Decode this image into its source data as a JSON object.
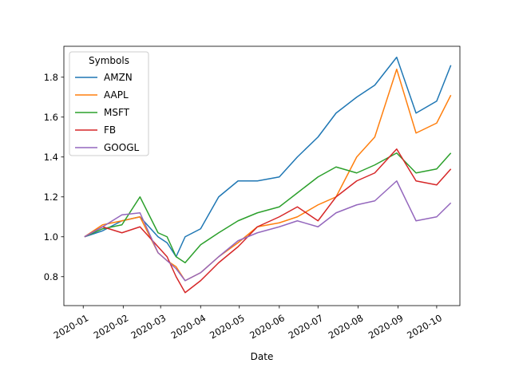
{
  "chart_data": {
    "type": "line",
    "xlabel": "Date",
    "ylabel": "",
    "title": "",
    "legend_title": "Symbols",
    "legend_position": "top-left",
    "grid": false,
    "xlim": [
      "2019-12-17",
      "2020-10-19"
    ],
    "ylim": [
      0.655,
      1.955
    ],
    "x_ticks": [
      {
        "date": "2020-01-01",
        "label": "2020-01"
      },
      {
        "date": "2020-02-01",
        "label": "2020-02"
      },
      {
        "date": "2020-03-01",
        "label": "2020-03"
      },
      {
        "date": "2020-04-01",
        "label": "2020-04"
      },
      {
        "date": "2020-05-01",
        "label": "2020-05"
      },
      {
        "date": "2020-06-01",
        "label": "2020-06"
      },
      {
        "date": "2020-07-01",
        "label": "2020-07"
      },
      {
        "date": "2020-08-01",
        "label": "2020-08"
      },
      {
        "date": "2020-09-01",
        "label": "2020-09"
      },
      {
        "date": "2020-10-01",
        "label": "2020-10"
      }
    ],
    "y_ticks": [
      {
        "value": 0.8,
        "label": "0.8"
      },
      {
        "value": 1.0,
        "label": "1.0"
      },
      {
        "value": 1.2,
        "label": "1.2"
      },
      {
        "value": 1.4,
        "label": "1.4"
      },
      {
        "value": 1.6,
        "label": "1.6"
      },
      {
        "value": 1.8,
        "label": "1.8"
      }
    ],
    "x": [
      "2020-01-02",
      "2020-01-16",
      "2020-01-31",
      "2020-02-14",
      "2020-02-28",
      "2020-03-06",
      "2020-03-13",
      "2020-03-20",
      "2020-04-01",
      "2020-04-15",
      "2020-04-30",
      "2020-05-15",
      "2020-06-01",
      "2020-06-15",
      "2020-07-01",
      "2020-07-15",
      "2020-07-31",
      "2020-08-14",
      "2020-08-31",
      "2020-09-15",
      "2020-10-01",
      "2020-10-12"
    ],
    "series": [
      {
        "name": "AMZN",
        "color": "#1f77b4",
        "values": [
          1.0,
          1.03,
          1.08,
          1.1,
          1.0,
          0.97,
          0.9,
          1.0,
          1.04,
          1.2,
          1.28,
          1.28,
          1.3,
          1.4,
          1.5,
          1.62,
          1.7,
          1.76,
          1.9,
          1.62,
          1.68,
          1.86
        ]
      },
      {
        "name": "AAPL",
        "color": "#ff7f0e",
        "values": [
          1.0,
          1.06,
          1.08,
          1.1,
          0.92,
          0.88,
          0.85,
          0.78,
          0.82,
          0.9,
          0.97,
          1.05,
          1.07,
          1.1,
          1.16,
          1.2,
          1.4,
          1.5,
          1.84,
          1.52,
          1.57,
          1.71
        ]
      },
      {
        "name": "MSFT",
        "color": "#2ca02c",
        "values": [
          1.0,
          1.04,
          1.06,
          1.2,
          1.02,
          1.0,
          0.9,
          0.87,
          0.96,
          1.02,
          1.08,
          1.12,
          1.15,
          1.22,
          1.3,
          1.35,
          1.32,
          1.36,
          1.42,
          1.32,
          1.34,
          1.42
        ]
      },
      {
        "name": "FB",
        "color": "#d62728",
        "values": [
          1.0,
          1.05,
          1.02,
          1.05,
          0.95,
          0.9,
          0.8,
          0.72,
          0.78,
          0.87,
          0.95,
          1.05,
          1.1,
          1.15,
          1.08,
          1.2,
          1.28,
          1.32,
          1.44,
          1.28,
          1.26,
          1.34
        ]
      },
      {
        "name": "GOOGL",
        "color": "#9467bd",
        "values": [
          1.0,
          1.05,
          1.11,
          1.12,
          0.92,
          0.88,
          0.84,
          0.78,
          0.82,
          0.9,
          0.98,
          1.02,
          1.05,
          1.08,
          1.05,
          1.12,
          1.16,
          1.18,
          1.28,
          1.08,
          1.1,
          1.17
        ]
      }
    ]
  }
}
